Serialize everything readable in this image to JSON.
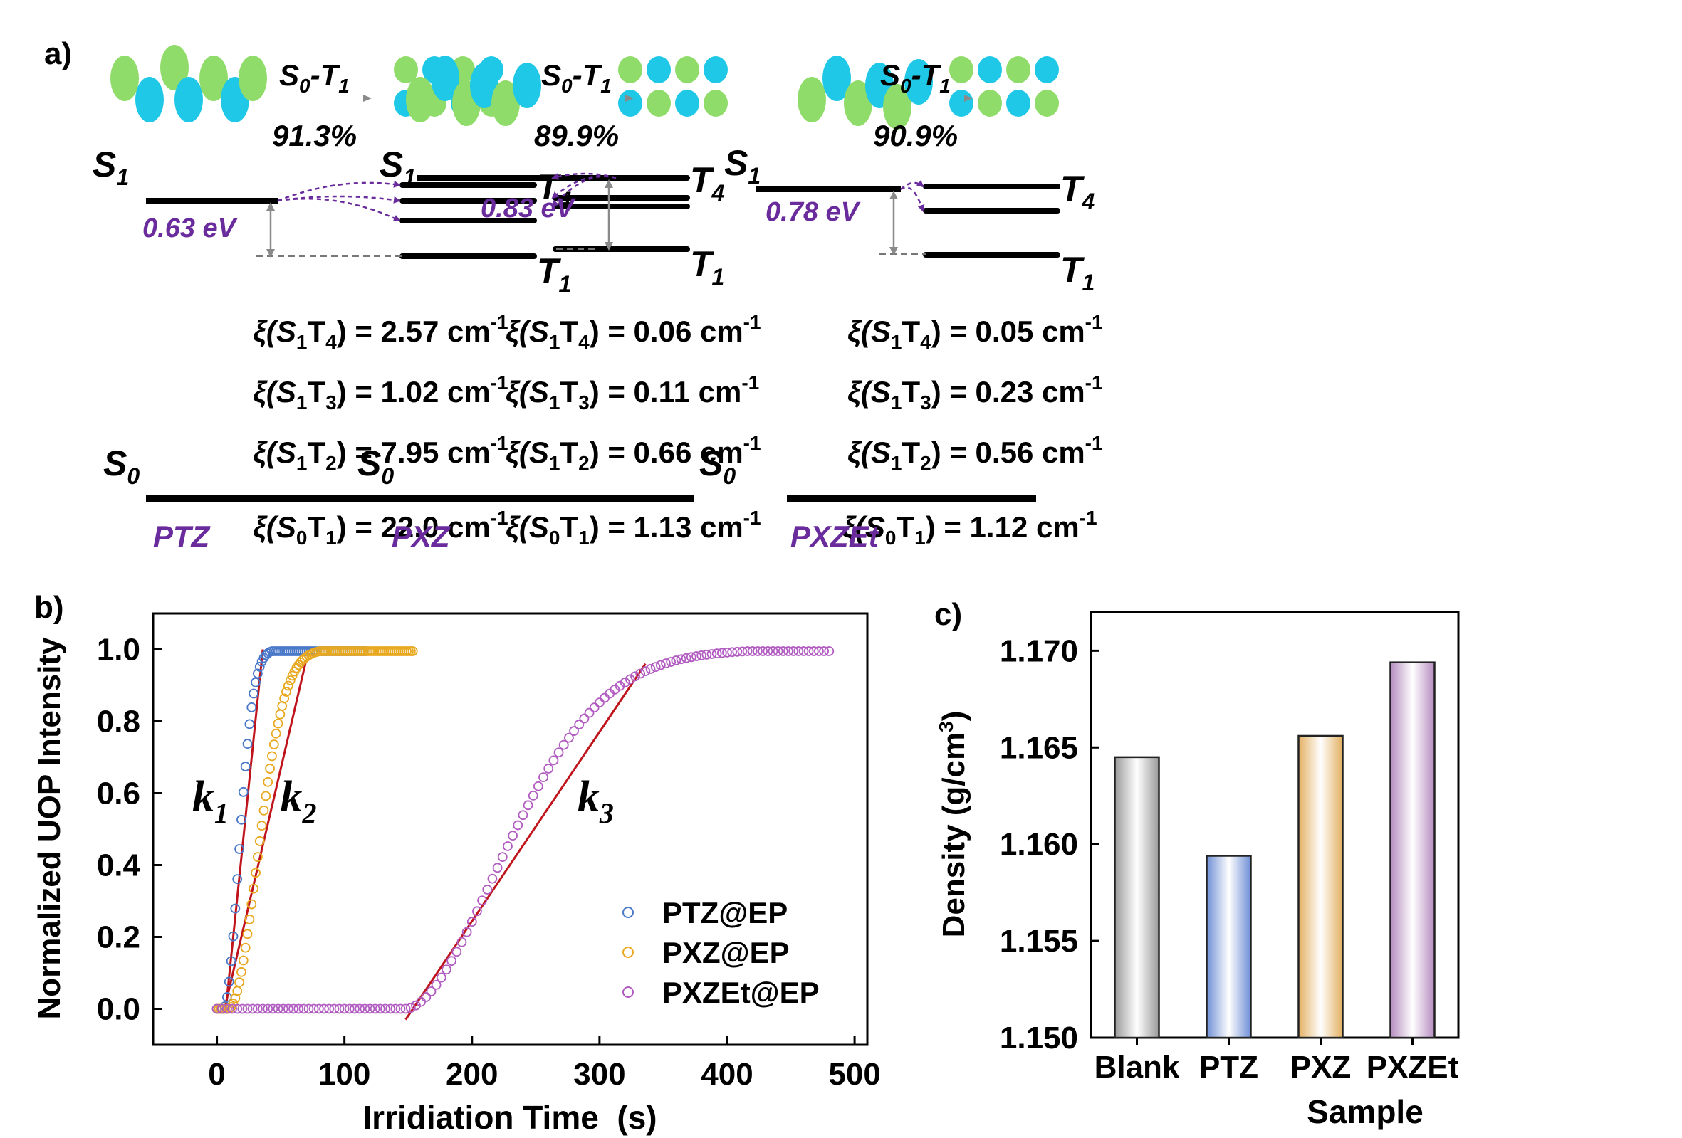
{
  "panel_labels": {
    "a": "a)",
    "b": "b)",
    "c": "c)"
  },
  "panel_a": {
    "molecules": [
      {
        "name": "PTZ",
        "transition": {
          "main": "S",
          "sub0": "0",
          "dash": "-T",
          "sub1": "1"
        },
        "percent": "91.3%",
        "gap": "0.63 eV",
        "socs": [
          {
            "pre": "ξ(S",
            "a": "1",
            "mid": "T",
            "b": "4",
            "post": ") = 2.57 cm",
            "sup": "-1"
          },
          {
            "pre": "ξ(S",
            "a": "1",
            "mid": "T",
            "b": "3",
            "post": ") = 1.02 cm",
            "sup": "-1"
          },
          {
            "pre": "ξ(S",
            "a": "1",
            "mid": "T",
            "b": "2",
            "post": ") = 7.95 cm",
            "sup": "-1"
          },
          {
            "pre": "ξ(S",
            "a": "0",
            "mid": "T",
            "b": "1",
            "post": ") = 22.0 cm",
            "sup": "-1"
          }
        ]
      },
      {
        "name": "PXZ",
        "transition": {
          "main": "S",
          "sub0": "0",
          "dash": "-T",
          "sub1": "1"
        },
        "percent": "89.9%",
        "gap": "0.83 eV",
        "socs": [
          {
            "pre": "ξ(S",
            "a": "1",
            "mid": "T",
            "b": "4",
            "post": ") = 0.06 cm",
            "sup": "-1"
          },
          {
            "pre": "ξ(S",
            "a": "1",
            "mid": "T",
            "b": "3",
            "post": ") = 0.11 cm",
            "sup": "-1"
          },
          {
            "pre": "ξ(S",
            "a": "1",
            "mid": "T",
            "b": "2",
            "post": ") = 0.66 cm",
            "sup": "-1"
          },
          {
            "pre": "ξ(S",
            "a": "0",
            "mid": "T",
            "b": "1",
            "post": ") = 1.13 cm",
            "sup": "-1"
          }
        ]
      },
      {
        "name": "PXZEt",
        "transition": {
          "main": "S",
          "sub0": "0",
          "dash": "-T",
          "sub1": "1"
        },
        "percent": "90.9%",
        "gap": "0.78 eV",
        "socs": [
          {
            "pre": "ξ(S",
            "a": "1",
            "mid": "T",
            "b": "4",
            "post": ") = 0.05 cm",
            "sup": "-1"
          },
          {
            "pre": "ξ(S",
            "a": "1",
            "mid": "T",
            "b": "3",
            "post": ") = 0.23 cm",
            "sup": "-1"
          },
          {
            "pre": "ξ(S",
            "a": "1",
            "mid": "T",
            "b": "2",
            "post": ") = 0.56 cm",
            "sup": "-1"
          },
          {
            "pre": "ξ(S",
            "a": "0",
            "mid": "T",
            "b": "1",
            "post": ") = 1.12 cm",
            "sup": "-1"
          }
        ]
      }
    ],
    "level_labels": {
      "S": "S",
      "T": "T",
      "one": "1",
      "four": "4",
      "zero": "0"
    },
    "colors": {
      "orbital_green": "#8fdc6a",
      "orbital_cyan": "#1fc8e6",
      "accent_purple": "#6a2c9c"
    }
  },
  "chart_data": [
    {
      "type": "scatter",
      "xlabel": "Irridiation Time  (s)",
      "ylabel": "Normalized UOP Intensity",
      "xlim": [
        -50,
        510
      ],
      "ylim": [
        -0.1,
        1.1
      ],
      "xticks": [
        0,
        100,
        200,
        300,
        400,
        500
      ],
      "yticks": [
        0.0,
        0.2,
        0.4,
        0.6,
        0.8,
        1.0
      ],
      "xtick_labels": [
        "0",
        "100",
        "200",
        "300",
        "400",
        "500"
      ],
      "ytick_labels": [
        "0.0",
        "0.2",
        "0.4",
        "0.6",
        "0.8",
        "1.0"
      ],
      "grid": false,
      "legend_position": "bottom-right",
      "series": [
        {
          "name": "PTZ@EP",
          "color": "#4a78c9",
          "t_on": 5,
          "tau": 18,
          "t_end": 118
        },
        {
          "name": "PXZ@EP",
          "color": "#e8a820",
          "t_on": 9,
          "tau": 34,
          "t_end": 155
        },
        {
          "name": "PXZEt@EP",
          "color": "#b15cc0",
          "t_on": 148,
          "tau": 100,
          "t_end": 480
        }
      ],
      "fit_lines": [
        {
          "label": "k1",
          "x": [
            7,
            36
          ],
          "y": [
            0.0,
            1.0
          ]
        },
        {
          "label": "k2",
          "x": [
            6,
            70
          ],
          "y": [
            0.0,
            0.97
          ]
        },
        {
          "label": "k3",
          "x": [
            148,
            336
          ],
          "y": [
            -0.03,
            0.96
          ]
        }
      ],
      "annotations": [
        {
          "text": "k",
          "sub": "1",
          "x": 3,
          "y": 0.55
        },
        {
          "text": "k",
          "sub": "2",
          "x": 72,
          "y": 0.55
        },
        {
          "text": "k",
          "sub": "3",
          "x": 305,
          "y": 0.55
        }
      ],
      "fit_color": "#c0141c"
    },
    {
      "type": "bar",
      "categories": [
        "Blank",
        "PTZ",
        "PXZ",
        "PXZEt"
      ],
      "values": [
        1.1645,
        1.1594,
        1.1656,
        1.1694
      ],
      "xlabel": "Sample",
      "ylabel": "Density (g/cm",
      "ylabel_sup": "3",
      "ylabel_end": ")",
      "ylim": [
        1.15,
        1.172
      ],
      "yticks": [
        1.15,
        1.155,
        1.16,
        1.165,
        1.17
      ],
      "ytick_labels": [
        "1.150",
        "1.155",
        "1.160",
        "1.165",
        "1.170"
      ],
      "bar_colors": [
        "#9a9a9a",
        "#6f8fd6",
        "#e3b062",
        "#b58cc0"
      ]
    }
  ]
}
